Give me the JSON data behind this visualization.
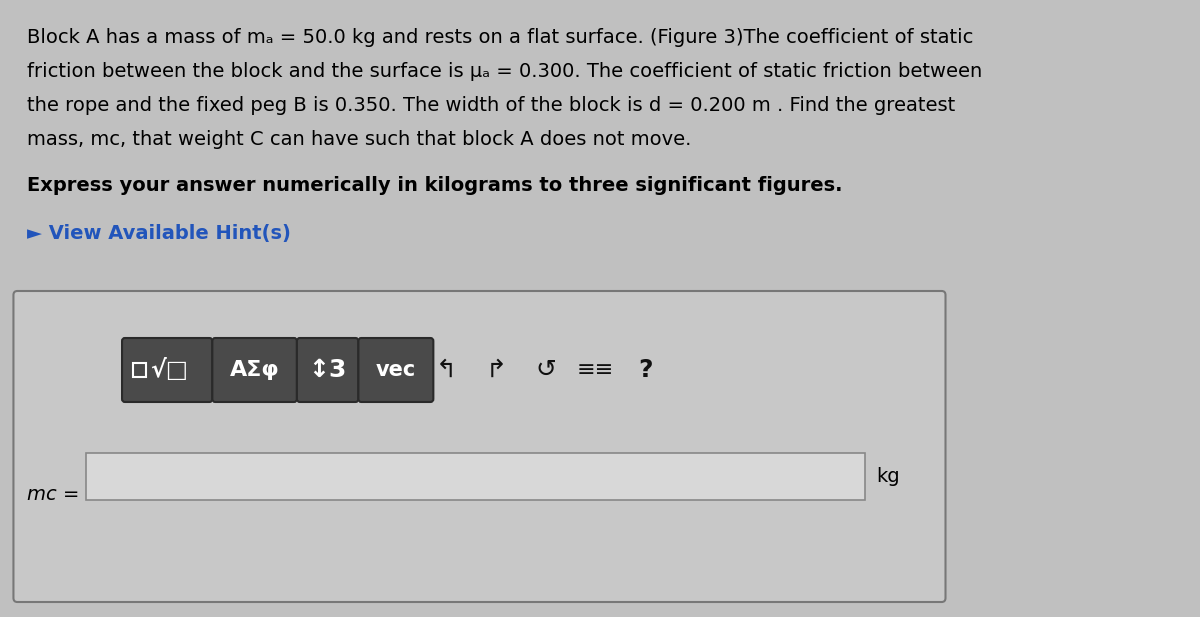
{
  "bg_color": "#c0c0c0",
  "text_lines": [
    "Block A has a mass of mₐ = 50.0 kg and rests on a flat surface. (Figure 3)The coefficient of static",
    "friction between the block and the surface is μₐ = 0.300. The coefficient of static friction between",
    "the rope and the fixed peg B is 0.350. The width of the block is d = 0.200 m . Find the greatest",
    "mass, mc, that weight C can have such that block A does not move."
  ],
  "bold_line": "Express your answer numerically in kilograms to three significant figures.",
  "hint_line": "► View Available Hint(s)",
  "answer_label": "mc =",
  "unit_label": "kg",
  "hint_color": "#2255bb",
  "main_font_size": 14,
  "bold_font_size": 14,
  "hint_font_size": 14,
  "answer_font_size": 14,
  "button_bg": "#4a4a4a",
  "button_border": "#2a2a2a",
  "box_bg": "#c8c8c8",
  "box_border": "#888888",
  "input_bg": "#e0e0e0",
  "input_border": "#666666",
  "btn_labels": [
    "√□",
    "AΣφ",
    "↕3",
    "vec"
  ],
  "icon_labels": [
    "↰",
    "↱",
    "↺",
    "⋮⋮",
    "?"
  ]
}
